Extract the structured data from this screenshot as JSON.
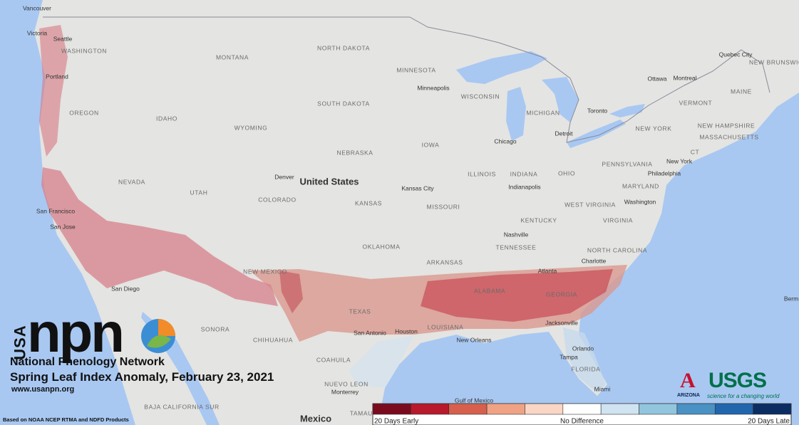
{
  "map": {
    "labels": [
      "Vancouver",
      "Victoria",
      "Seattle",
      "WASHINGTON",
      "Portland",
      "OREGON",
      "IDAHO",
      "MONTANA",
      "WYOMING",
      "NORTH DAKOTA",
      "SOUTH DAKOTA",
      "MINNESOTA",
      "Minneapolis",
      "WISCONSIN",
      "MICHIGAN",
      "NEBRASKA",
      "IOWA",
      "Chicago",
      "Detroit",
      "Toronto",
      "Ottawa",
      "Montreal",
      "Quebec City",
      "NEW BRUNSWICK",
      "MAINE",
      "VERMONT",
      "NEW HAMPSHIRE",
      "NEW YORK",
      "MASSACHUSETTS",
      "CT",
      "New York",
      "PENNSYLVANIA",
      "Philadelphia",
      "OHIO",
      "INDIANA",
      "Indianapolis",
      "ILLINOIS",
      "Denver",
      "NEVADA",
      "UTAH",
      "COLORADO",
      "Kansas City",
      "KANSAS",
      "MISSOURI",
      "MARYLAND",
      "Washington",
      "WEST VIRGINIA",
      "VIRGINIA",
      "KENTUCKY",
      "Nashville",
      "TENNESSEE",
      "NORTH CAROLINA",
      "OKLAHOMA",
      "ARKANSAS",
      "NEW MEXICO",
      "Atlanta",
      "Charlotte",
      "ALABAMA",
      "GEORGIA",
      "TEXAS",
      "LOUISIANA",
      "Houston",
      "San Antonio",
      "New Orleans",
      "Jacksonville",
      "Orlando",
      "Tampa",
      "FLORIDA",
      "Miami",
      "San Francisco",
      "San Jose",
      "San Diego",
      "SONORA",
      "CHIHUAHUA",
      "COAHUILA",
      "NUEVO LEON",
      "Monterrey",
      "BAJA CALIFORNIA SUR",
      "TAMAULIPAS",
      "Gulf of Mexico",
      "Berm"
    ],
    "country_labels": [
      "United States",
      "Mexico"
    ]
  },
  "logo": {
    "country": "USA",
    "acronym": "npn",
    "name": "National Phenology Network",
    "title": "Spring Leaf Index Anomaly, February 23, 2021",
    "url": "www.usanpn.org",
    "source": "Based on NOAA NCEP RTMA and NDFD Products"
  },
  "partners": {
    "arizona_mark": "A",
    "arizona": "ARIZONA",
    "usgs": "USGS",
    "usgs_tagline": "science for a changing world"
  },
  "legend": {
    "colors": [
      "#7a0b1f",
      "#b8192c",
      "#d6604d",
      "#f0a285",
      "#fbd6c4",
      "#ffffff",
      "#cfe3f0",
      "#92c5de",
      "#4a91c4",
      "#2166ac",
      "#0b2d62"
    ],
    "labels": [
      "20 Days Early",
      "No Difference",
      "20 Days Late"
    ]
  }
}
